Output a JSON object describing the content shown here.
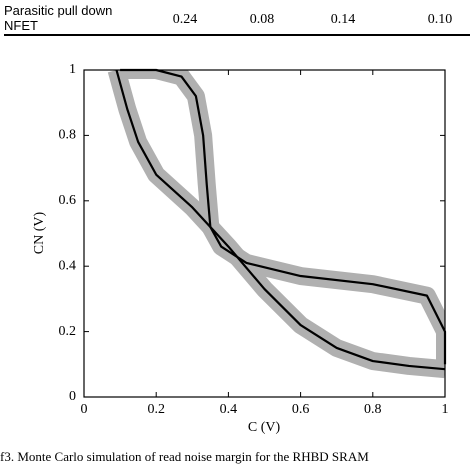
{
  "table": {
    "rows": [
      [
        "Parasitic pull down NFET",
        "0.24",
        "0.08",
        "0.14",
        "0.10"
      ]
    ]
  },
  "chart_data": {
    "type": "line",
    "xlabel": "C (V)",
    "ylabel": "CN (V)",
    "xlim": [
      0,
      1
    ],
    "ylim": [
      0,
      1
    ],
    "xticks": [
      0,
      0.2,
      0.4,
      0.6,
      0.8,
      1
    ],
    "yticks": [
      0,
      0.2,
      0.4,
      0.6,
      0.8,
      1
    ],
    "band_color": "#b0b0b0",
    "series": [
      {
        "color": "#000000",
        "x": [
          0.1,
          0.2,
          0.27,
          0.31,
          0.33,
          0.34,
          0.35,
          0.38,
          0.45,
          0.6,
          0.8,
          0.95,
          1,
          1
        ],
        "values": [
          1,
          1,
          0.98,
          0.92,
          0.8,
          0.65,
          0.52,
          0.46,
          0.41,
          0.37,
          0.345,
          0.31,
          0.2,
          0.1
        ]
      },
      {
        "color": "#000000",
        "x": [
          0.09,
          0.12,
          0.15,
          0.2,
          0.3,
          0.4,
          0.5,
          0.6,
          0.7,
          0.8,
          0.9,
          1
        ],
        "values": [
          1,
          0.88,
          0.78,
          0.68,
          0.58,
          0.46,
          0.33,
          0.22,
          0.15,
          0.11,
          0.095,
          0.085
        ]
      }
    ]
  },
  "caption": "f3. Monte Carlo simulation of read noise margin for the RHBD SRAM"
}
